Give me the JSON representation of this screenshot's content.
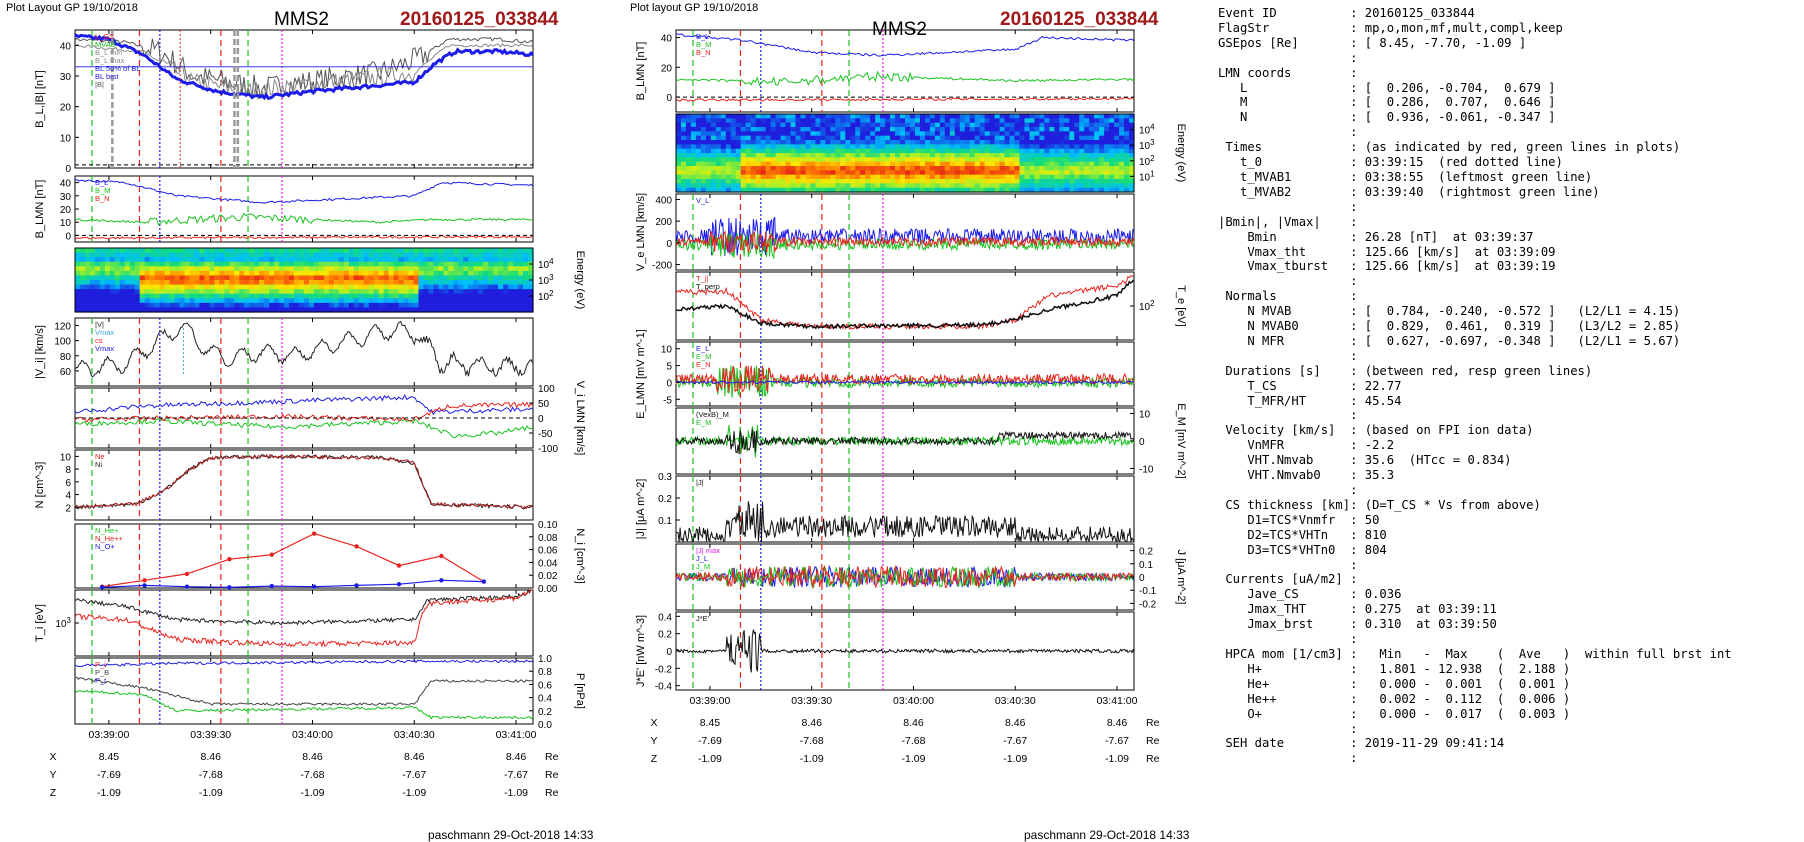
{
  "left_page": {
    "layout_label": "Plot Layout GP 19/10/2018",
    "spacecraft": "MMS2",
    "event": "20160125_033844",
    "footer": "paschmann 29-Oct-2018 14:33"
  },
  "middle_page": {
    "layout_label": "Plot layout GP 19/10/2018",
    "spacecraft": "MMS2",
    "event": "20160125_033844",
    "footer": "paschmann 29-Oct-2018 14:33"
  },
  "time_ticks": [
    "03:39:00",
    "03:39:30",
    "03:40:00",
    "03:40:30",
    "03:41:00"
  ],
  "position_table": {
    "rows": [
      {
        "label": "X",
        "values": [
          "8.45",
          "8.46",
          "8.46",
          "8.46",
          "8.46"
        ],
        "unit": "Re"
      },
      {
        "label": "Y",
        "values": [
          "-7.69",
          "-7.68",
          "-7.68",
          "-7.67",
          "-7.67"
        ],
        "unit": "Re"
      },
      {
        "label": "Z",
        "values": [
          "-1.09",
          "-1.09",
          "-1.09",
          "-1.09",
          "-1.09"
        ],
        "unit": "Re"
      }
    ]
  },
  "colors": {
    "red": "#e8231d",
    "green": "#19c21f",
    "blue": "#1c1ce8",
    "magenta": "#e31ce3",
    "gray": "#909090",
    "black": "#000000",
    "title_red": "#a01818"
  },
  "chart_data": [
    {
      "type": "line",
      "panel": "left-1",
      "ylabel": "B_L,|B| [nT]",
      "ylim": [
        0,
        45
      ],
      "yticks": [
        0,
        10,
        20,
        30,
        40
      ],
      "legend": [
        "L_GS",
        "MVAB",
        "B_L min",
        "B_L max",
        "BL 50% of BL",
        "BL brst",
        "|B|"
      ],
      "series": [
        {
          "name": "|B|",
          "color": "#303030",
          "x": [
            0,
            10,
            20,
            30,
            40,
            50,
            60,
            70,
            80,
            90,
            100,
            110,
            115,
            120,
            125
          ],
          "y": [
            42,
            42,
            38,
            30,
            28,
            26,
            28,
            30,
            31,
            33,
            35,
            40,
            42,
            42,
            41
          ]
        },
        {
          "name": "B_L",
          "color": "#1c1ce8",
          "x": [
            0,
            10,
            20,
            30,
            40,
            50,
            60,
            70,
            80,
            90,
            100,
            110,
            115,
            120,
            125
          ],
          "y": [
            43,
            41,
            34,
            27,
            24,
            23,
            25,
            26,
            27,
            28,
            30,
            37,
            39,
            38,
            37
          ]
        }
      ]
    },
    {
      "type": "line",
      "panel": "left-2",
      "ylabel": "B_LMN [nT]",
      "ylim": [
        -5,
        45
      ],
      "yticks": [
        0,
        10,
        20,
        30,
        40
      ],
      "legend": [
        "B_L",
        "B_M",
        "B_N"
      ]
    },
    {
      "type": "heatmap",
      "panel": "left-3",
      "ylabel": "Energy (eV)",
      "yticks": [
        "10^4",
        "10^3",
        "10^2"
      ]
    },
    {
      "type": "line",
      "panel": "left-4",
      "ylabel": "|V_i| [km/s]",
      "ylim": [
        40,
        130
      ],
      "yticks": [
        60,
        80,
        100,
        120
      ],
      "legend": [
        "|V|",
        "Vmax",
        "cs",
        "Vmax"
      ]
    },
    {
      "type": "line",
      "panel": "left-5",
      "ylabel": "V_i LMN [km/s]",
      "ylim": [
        -100,
        100
      ],
      "yticks": [
        -100,
        -50,
        0,
        50,
        100
      ]
    },
    {
      "type": "line",
      "panel": "left-6",
      "ylabel": "N [cm^-3]",
      "ylim": [
        0,
        11
      ],
      "yticks": [
        2,
        4,
        6,
        8,
        10
      ],
      "legend": [
        "Ne",
        "Ni"
      ]
    },
    {
      "type": "line",
      "panel": "left-7",
      "ylabel": "N_i [cm^-3]",
      "ylim": [
        0,
        0.1
      ],
      "yticks": [
        "0.00",
        "0.02",
        "0.04",
        "0.06",
        "0.08",
        "0.10"
      ],
      "legend": [
        "N_He+",
        "N_He++",
        "N_O+"
      ],
      "series": [
        {
          "name": "N_He++",
          "color": "#e8231d",
          "x": [
            0,
            10,
            20,
            30,
            40,
            50,
            60,
            70,
            80,
            90
          ],
          "y": [
            0.002,
            0.012,
            0.022,
            0.045,
            0.052,
            0.085,
            0.065,
            0.035,
            0.05,
            0.01
          ]
        },
        {
          "name": "N_O+",
          "color": "#1c1ce8",
          "x": [
            0,
            10,
            20,
            30,
            40,
            50,
            60,
            70,
            80,
            90
          ],
          "y": [
            0.001,
            0.004,
            0.002,
            0.001,
            0.003,
            0.002,
            0.004,
            0.006,
            0.012,
            0.01
          ]
        }
      ]
    },
    {
      "type": "line",
      "panel": "left-8",
      "ylabel": "T_i [eV]",
      "yticks": [
        "10^3"
      ]
    },
    {
      "type": "line",
      "panel": "left-9",
      "ylabel": "P [nPa]",
      "ylim": [
        0,
        1.0
      ],
      "yticks": [
        "0.0",
        "0.2",
        "0.4",
        "0.6",
        "0.8",
        "1.0"
      ],
      "legend": [
        "P_i",
        "P_B",
        "P_t"
      ]
    },
    {
      "type": "line",
      "panel": "mid-1",
      "ylabel": "B_LMN [nT]",
      "ylim": [
        -10,
        45
      ],
      "yticks": [
        0,
        20,
        40
      ],
      "legend": [
        "B_L",
        "B_M",
        "B_N"
      ]
    },
    {
      "type": "heatmap",
      "panel": "mid-2",
      "ylabel": "Energy (eV)",
      "yticks": [
        "10^4",
        "10^3",
        "10^2",
        "10^1"
      ]
    },
    {
      "type": "line",
      "panel": "mid-3",
      "ylabel": "V_e LMN [km/s]",
      "ylim": [
        -250,
        450
      ],
      "yticks": [
        -200,
        0,
        200,
        400
      ],
      "legend": [
        "V_L"
      ]
    },
    {
      "type": "line",
      "panel": "mid-4",
      "ylabel": "T_e [eV]",
      "yticks": [
        "10^2"
      ],
      "legend": [
        "T_||",
        "T_perp"
      ]
    },
    {
      "type": "line",
      "panel": "mid-5",
      "ylabel": "E_LMN [mV m^-1]",
      "ylim": [
        -7,
        12
      ],
      "yticks": [
        -5,
        0,
        5,
        10
      ],
      "legend": [
        "E_L",
        "E_M",
        "E_N"
      ]
    },
    {
      "type": "line",
      "panel": "mid-6",
      "ylabel": "E_M [mV m^-2]",
      "ylim": [
        -12,
        12
      ],
      "yticks": [
        -10,
        0,
        10
      ],
      "legend": [
        "(VexB)_M",
        "E_M"
      ]
    },
    {
      "type": "line",
      "panel": "mid-7",
      "ylabel": "|J| [μA m^-2]",
      "ylim": [
        0,
        0.3
      ],
      "yticks": [
        0.1,
        0.2,
        0.3
      ],
      "legend": [
        "|J|"
      ]
    },
    {
      "type": "line",
      "panel": "mid-8",
      "ylabel": "J [μA m^-2]",
      "ylim": [
        -0.25,
        0.25
      ],
      "yticks": [
        -0.2,
        -0.1,
        0.0,
        0.1,
        0.2
      ],
      "legend": [
        "|J| max",
        "J_L",
        "J_M",
        "J_N"
      ]
    },
    {
      "type": "line",
      "panel": "mid-9",
      "ylabel": "J*E' [nW m^-3]",
      "ylim": [
        -0.45,
        0.45
      ],
      "yticks": [
        -0.4,
        -0.2,
        0.0,
        0.2,
        0.4
      ],
      "legend": [
        "J*E'"
      ]
    }
  ],
  "info_lines": [
    "Event ID          : 20160125_033844",
    "FlagStr           : mp,o,mon,mf,mult,compl,keep",
    "GSEpos [Re]       : [ 8.45, -7.70, -1.09 ]",
    "                  :",
    "LMN coords        :",
    "   L              : [  0.206, -0.704,  0.679 ]",
    "   M              : [  0.286,  0.707,  0.646 ]",
    "   N              : [  0.936, -0.061, -0.347 ]",
    "                  :",
    " Times            : (as indicated by red, green lines in plots)",
    "   t_0            : 03:39:15  (red dotted line)",
    "   t_MVAB1        : 03:38:55  (leftmost green line)",
    "   t_MVAB2        : 03:39:40  (rightmost green line)",
    "                  :",
    "|Bmin|, |Vmax|    :",
    "    Bmin          : 26.28 [nT]  at 03:39:37",
    "    Vmax_tht      : 125.66 [km/s]  at 03:39:09",
    "    Vmax_tburst   : 125.66 [km/s]  at 03:39:19",
    "                  :",
    " Normals          :",
    "    N MVAB        : [  0.784, -0.240, -0.572 ]   (L2/L1 = 4.15)",
    "    N MVAB0       : [  0.829,  0.461,  0.319 ]   (L3/L2 = 2.85)",
    "    N MFR         : [  0.627, -0.697, -0.348 ]   (L2/L1 = 5.67)",
    "                  :",
    " Durations [s]    : (between red, resp green lines)",
    "    T_CS          : 22.77",
    "    T_MFR/HT      : 45.54",
    "                  :",
    " Velocity [km/s]  : (based on FPI ion data)",
    "    VnMFR         : -2.2",
    "    VHT.Nmvab     : 35.6  (HTcc = 0.834)",
    "    VHT.Nmvab0    : 35.3",
    "                  :",
    " CS thickness [km]: (D=T_CS * Vs from above)",
    "    D1=TCS*Vnmfr  : 50",
    "    D2=TCS*VHTn   : 810",
    "    D3=TCS*VHTn0  : 804",
    "                  :",
    " Currents [uA/m2] :",
    "    Jave_CS       : 0.036",
    "    Jmax_THT      : 0.275  at 03:39:11",
    "    Jmax_brst     : 0.310  at 03:39:50",
    "                  :",
    " HPCA mom [1/cm3] :   Min   -  Max    (  Ave   )  within full brst int",
    "    H+            :   1.801 - 12.938  (  2.188 )",
    "    He+           :   0.000 -  0.001  (  0.001 )",
    "    He++          :   0.002 -  0.112  (  0.006 )",
    "    O+            :   0.000 -  0.017  (  0.003 )",
    "                  :",
    " SEH date         : 2019-11-29 09:41:14",
    "                  :"
  ]
}
